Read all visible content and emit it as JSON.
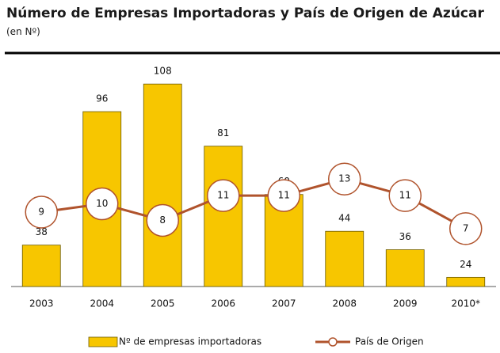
{
  "chart_data": {
    "type": "bar_line",
    "title": "Número de Empresas Importadoras y País de Origen de Azúcar",
    "subtitle": "(en Nº)",
    "categories": [
      "2003",
      "2004",
      "2005",
      "2006",
      "2007",
      "2008",
      "2009",
      "2010*"
    ],
    "series": [
      {
        "name": "Nº de empresas importadoras",
        "type": "bar",
        "color": "#f7c600",
        "values": [
          38,
          96,
          108,
          81,
          60,
          44,
          36,
          24
        ]
      },
      {
        "name": "País de Origen",
        "type": "line",
        "axis": "y2",
        "color": "#b0532c",
        "values": [
          9,
          10,
          8,
          11,
          11,
          13,
          11,
          7
        ]
      }
    ],
    "ylim": [
      20,
      117
    ],
    "y2lim": [
      0,
      27
    ]
  }
}
